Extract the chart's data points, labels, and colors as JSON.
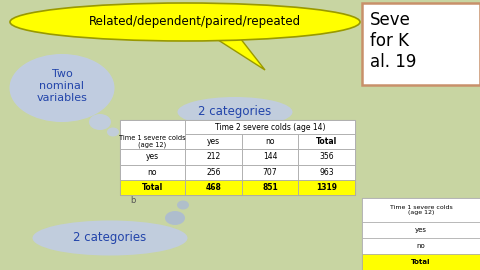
{
  "bg_color": "#c8d5a2",
  "title_text": "Related/dependent/paired/repeated",
  "bubble_text_left": "Two\nnominal\nvariables",
  "bubble_text_top": "2 categories",
  "bubble_text_bottom": "2 categories",
  "table_header_col": "Time 2 severe colds (age 14)",
  "table_header_row": "Time 1 severe colds\n(age 12)",
  "col_headers": [
    "yes",
    "no",
    "Total"
  ],
  "row_headers": [
    "yes",
    "no",
    "Total"
  ],
  "data": [
    [
      212,
      144,
      356
    ],
    [
      256,
      707,
      963
    ],
    [
      468,
      851,
      1319
    ]
  ],
  "side_box_text": "Seve\nfor K\nal. 19",
  "mini_table_row_header": "Time 1 severe colds\n(age 12)",
  "mini_table_rows": [
    "yes",
    "no",
    "Total"
  ],
  "yellow": "#ffff00",
  "table_border": "#aaaaaa",
  "side_box_border": "#c8906a",
  "bubble_color": "#c0cce8",
  "bubble_tail_color": "#a8b8d8"
}
